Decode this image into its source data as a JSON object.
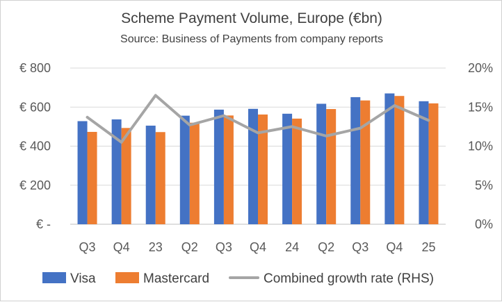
{
  "chart_data": {
    "type": "bar",
    "title": "Scheme Payment Volume, Europe (€bn)",
    "subtitle": "Source: Business of Payments from company reports",
    "categories": [
      "Q3",
      "Q4",
      "23",
      "Q2",
      "Q3",
      "Q4",
      "24",
      "Q2",
      "Q3",
      "Q4",
      "25"
    ],
    "series": [
      {
        "name": "Visa",
        "kind": "bar",
        "axis": "left",
        "color": "#4472C4",
        "values": [
          528,
          537,
          505,
          556,
          587,
          591,
          566,
          617,
          651,
          670,
          630
        ]
      },
      {
        "name": "Mastercard",
        "kind": "bar",
        "axis": "left",
        "color": "#ED7D31",
        "values": [
          473,
          493,
          472,
          520,
          557,
          562,
          541,
          590,
          634,
          657,
          619
        ]
      },
      {
        "name": "Combined growth rate (RHS)",
        "kind": "line",
        "axis": "right",
        "color": "#A5A5A5",
        "values": [
          0.137,
          0.105,
          0.165,
          0.127,
          0.139,
          0.117,
          0.125,
          0.113,
          0.123,
          0.152,
          0.133
        ]
      }
    ],
    "y_left": {
      "ylim": [
        0,
        800
      ],
      "ticks": [
        0,
        200,
        400,
        600,
        800
      ],
      "tick_labels": [
        "€ -",
        "€ 200",
        "€ 400",
        "€ 600",
        "€ 800"
      ]
    },
    "y_right": {
      "ylim": [
        0,
        0.2
      ],
      "ticks": [
        0,
        0.05,
        0.1,
        0.15,
        0.2
      ],
      "tick_labels": [
        "0%",
        "5%",
        "10%",
        "15%",
        "20%"
      ]
    },
    "grid": true,
    "legend_position": "bottom"
  }
}
